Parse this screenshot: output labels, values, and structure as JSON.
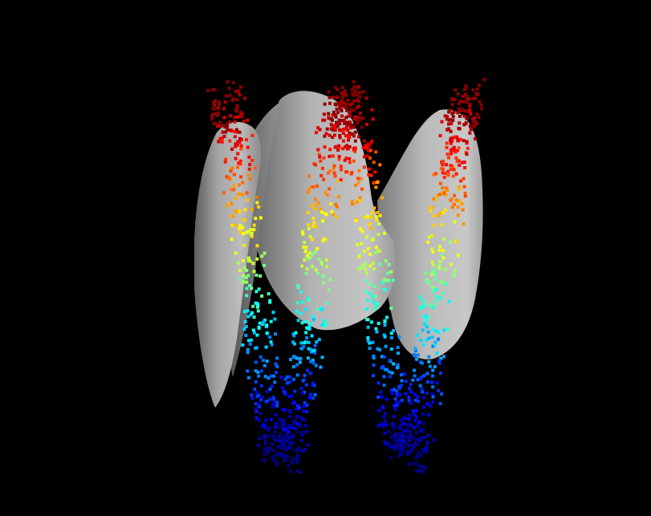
{
  "chart_data": {
    "type": "scatter",
    "projection": "3d",
    "title": "",
    "xlabel": "",
    "ylabel": "",
    "zlabel": "",
    "background_color": "#000000",
    "surface": {
      "name": "",
      "color": "#a9a9a9",
      "shading": "smooth-lit"
    },
    "color_scale": {
      "name": "jet",
      "low_color": "#00008f",
      "high_color": "#800000",
      "maps": "height"
    },
    "series": [
      {
        "name": "",
        "marker": "square",
        "n_points": 1500,
        "colored_by": "height",
        "height_range": [
          0,
          1
        ]
      }
    ],
    "axes_visible": false,
    "grid": false,
    "legend": "none"
  }
}
